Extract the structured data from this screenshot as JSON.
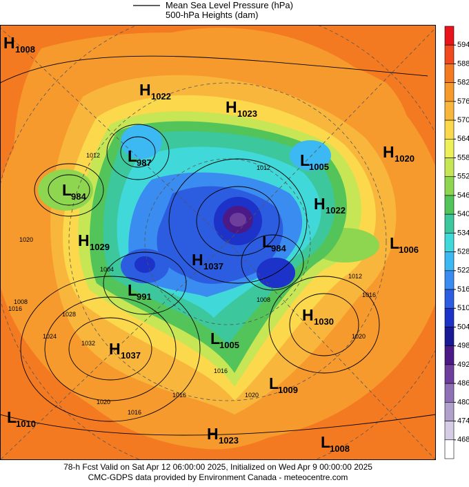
{
  "legend": {
    "items": [
      "Mean Sea Level Pressure (hPa)",
      "500-hPa Heights (dam)"
    ]
  },
  "centers": [
    {
      "type": "H",
      "value": "1008"
    },
    {
      "type": "H",
      "value": "1022"
    },
    {
      "type": "H",
      "value": "1023"
    },
    {
      "type": "L",
      "value": "987"
    },
    {
      "type": "L",
      "value": "1005"
    },
    {
      "type": "H",
      "value": "1020"
    },
    {
      "type": "L",
      "value": "984"
    },
    {
      "type": "H",
      "value": "1022"
    },
    {
      "type": "H",
      "value": "1029"
    },
    {
      "type": "L",
      "value": "984"
    },
    {
      "type": "L",
      "value": "1006"
    },
    {
      "type": "H",
      "value": "1037"
    },
    {
      "type": "L",
      "value": "991"
    },
    {
      "type": "H",
      "value": "1030"
    },
    {
      "type": "L",
      "value": "1005"
    },
    {
      "type": "H",
      "value": "1037"
    },
    {
      "type": "L",
      "value": "1009"
    },
    {
      "type": "L",
      "value": "1010"
    },
    {
      "type": "H",
      "value": "1023"
    },
    {
      "type": "L",
      "value": "1008"
    }
  ],
  "isobar_labels": [
    "1012",
    "1008",
    "1012",
    "1020",
    "1024",
    "1016",
    "1028",
    "1032",
    "1020",
    "1016",
    "1016",
    "1012",
    "1016",
    "1020",
    "1016",
    "1020",
    "1008",
    "1004"
  ],
  "colorbar": {
    "ticks": [
      594,
      588,
      582,
      576,
      570,
      564,
      558,
      552,
      546,
      540,
      534,
      528,
      522,
      516,
      510,
      504,
      498,
      492,
      486,
      480,
      474,
      468
    ],
    "colors": [
      "#e8141c",
      "#f0481f",
      "#f47a22",
      "#f79a2e",
      "#f9b63c",
      "#fbd84c",
      "#eef05a",
      "#c6e655",
      "#8fd650",
      "#52c45a",
      "#3cc89c",
      "#40d8d8",
      "#3cb8f2",
      "#3a8cf0",
      "#2c5ce0",
      "#1c32c8",
      "#1a1a96",
      "#4c1a86",
      "#6e3e9c",
      "#8e70b4",
      "#b0a0cc",
      "#d6cce6",
      "#ffffff"
    ]
  },
  "footer": {
    "lines": [
      "78-h Fcst Valid on Sat Apr 12 06:00:00 2025, Initialized on Wed Apr  9 00:00:00 2025",
      "CMC-GDPS data provided by Environment Canada - meteocentre.com"
    ]
  }
}
